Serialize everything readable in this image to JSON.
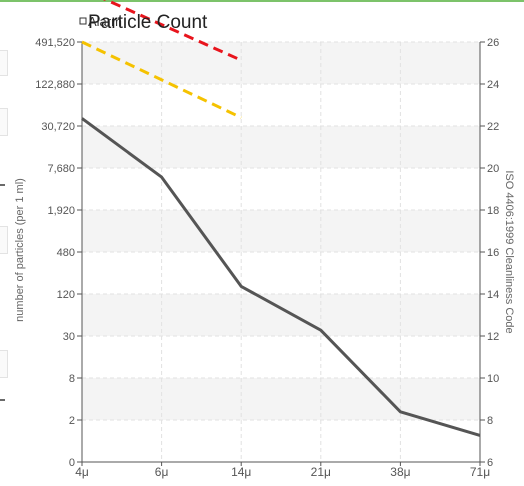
{
  "chart_data": {
    "type": "line",
    "title": "Particle Count",
    "legend": {
      "label": "Alarm",
      "placement": "top-left"
    },
    "x": [
      "4μ",
      "6μ",
      "14μ",
      "21μ",
      "38μ",
      "71μ"
    ],
    "series": [
      {
        "values": [
          40000,
          5800,
          160,
          38,
          2.6,
          1.2
        ],
        "color": "#555555"
      }
    ],
    "limits": [
      {
        "x_start": "4μ",
        "x_end": "14μ",
        "values": [
          491520,
          41000
        ],
        "color": "#f5c200",
        "style": "dashed"
      },
      {
        "x_start": "4μ",
        "x_end": "14μ",
        "values": [
          2800000,
          270000
        ],
        "color": "#e8141c",
        "style": "dashed"
      }
    ],
    "y_left": {
      "label": "number of particles (per 1 ml)",
      "scale": "log",
      "ticks": [
        "491,520",
        "122,880",
        "30,720",
        "7,680",
        "1,920",
        "480",
        "120",
        "30",
        "8",
        "2",
        "0"
      ],
      "tick_values": [
        491520,
        122880,
        30720,
        7680,
        1920,
        480,
        120,
        30,
        8,
        2,
        0.5
      ]
    },
    "y_right": {
      "label": "ISO 4406:1999 Cleanliness Code",
      "ticks": [
        "26",
        "24",
        "22",
        "20",
        "18",
        "16",
        "14",
        "12",
        "10",
        "8",
        "6"
      ]
    },
    "grid": true
  }
}
